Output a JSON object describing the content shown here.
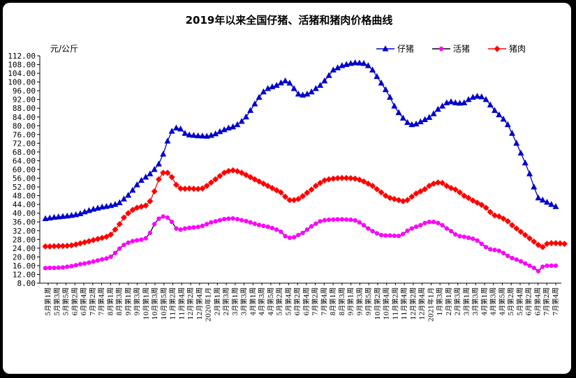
{
  "chart_data": {
    "type": "line",
    "title": "2019年以来全国仔猪、活猪和猪肉价格曲线",
    "ylabel": "元/公斤",
    "ylim": [
      8,
      112
    ],
    "yticks": [
      "112.00",
      "108.00",
      "104.00",
      "100.00",
      "96.00",
      "92.00",
      "88.00",
      "84.00",
      "80.00",
      "76.00",
      "72.00",
      "68.00",
      "64.00",
      "60.00",
      "56.00",
      "52.00",
      "48.00",
      "44.00",
      "40.00",
      "36.00",
      "32.00",
      "28.00",
      "24.00",
      "20.00",
      "16.00",
      "12.00",
      "8.00"
    ],
    "grid": false,
    "legend_position": "top-right",
    "x_labels": [
      "5月第1周",
      "5月第3周",
      "5月第5周",
      "6月第2周",
      "6月第4周",
      "7月第2周",
      "7月第4周",
      "8月第1周",
      "8月第3周",
      "9月第1周",
      "9月第3周",
      "10月第1周",
      "10月第3周",
      "10月第5周",
      "11月第2周",
      "11月第4周",
      "12月第2周",
      "12月第4周",
      "2020年1月",
      "2月第1周",
      "2月第3周",
      "3月第1周",
      "3月第3周",
      "4月第1周",
      "4月第3周",
      "4月第5周",
      "5月第2周",
      "5月第4周",
      "6月第2周",
      "6月第4周",
      "7月第2周",
      "7月第4周",
      "8月第1周",
      "8月第3周",
      "9月第1周",
      "9月第3周",
      "9月第5周",
      "10月第2周",
      "10月第4周",
      "11月第2周",
      "11月第4周",
      "12月第2周",
      "12月第4周",
      "2021年1月",
      "1月第3周",
      "2月第1周",
      "2月第3周",
      "3月第1周",
      "3月第3周",
      "4月第1周",
      "4月第3周",
      "4月第5周",
      "5月第2周",
      "5月第4周",
      "6月第2周",
      "6月第4周",
      "7月第2周",
      "7月第4周"
    ],
    "series": [
      {
        "name": "仔猪",
        "color": "#0000cc",
        "marker": "triangle",
        "values": [
          37.5,
          37.8,
          38.1,
          38.3,
          38.5,
          38.7,
          39.0,
          39.3,
          39.8,
          40.6,
          41.2,
          41.8,
          42.3,
          42.8,
          43.1,
          43.5,
          44.0,
          44.8,
          46.5,
          48.2,
          50.5,
          53.0,
          55.0,
          56.5,
          58.0,
          60.0,
          62.5,
          67.0,
          73.0,
          77.5,
          79.0,
          78.5,
          76.5,
          75.8,
          75.6,
          75.4,
          75.3,
          75.2,
          75.6,
          76.3,
          77.3,
          78.2,
          79.0,
          79.5,
          80.5,
          82.0,
          84.0,
          87.0,
          90.0,
          93.0,
          95.5,
          97.0,
          97.8,
          98.5,
          99.6,
          100.5,
          99.5,
          97.0,
          94.5,
          94.0,
          94.5,
          95.5,
          97.0,
          98.5,
          100.5,
          103.0,
          105.5,
          106.5,
          107.5,
          108.0,
          108.5,
          108.8,
          108.7,
          108.5,
          107.5,
          105.5,
          102.5,
          99.5,
          96.5,
          93.0,
          89.0,
          86.0,
          83.5,
          81.5,
          80.5,
          80.8,
          81.8,
          82.8,
          83.8,
          85.5,
          87.5,
          89.0,
          90.5,
          91.0,
          90.5,
          90.3,
          90.5,
          92.0,
          93.0,
          93.5,
          93.2,
          92.0,
          89.5,
          87.0,
          85.0,
          83.0,
          80.5,
          76.5,
          72.0,
          67.5,
          63.0,
          58.0,
          52.0,
          47.0,
          46.0,
          45.0,
          44.0,
          43.0
        ]
      },
      {
        "name": "活猪",
        "color": "#ff00ff",
        "marker": "circle",
        "values": [
          14.9,
          15.0,
          15.0,
          15.1,
          15.2,
          15.5,
          15.8,
          16.2,
          16.7,
          17.0,
          17.4,
          17.9,
          18.4,
          18.9,
          19.3,
          20.1,
          21.8,
          23.8,
          25.5,
          26.5,
          27.2,
          27.6,
          27.9,
          28.5,
          31.0,
          35.0,
          37.5,
          38.5,
          38.0,
          36.0,
          33.0,
          32.5,
          33.0,
          33.3,
          33.5,
          33.7,
          34.2,
          35.0,
          35.8,
          36.3,
          36.8,
          37.3,
          37.5,
          37.6,
          37.3,
          36.8,
          36.4,
          35.8,
          35.2,
          34.6,
          34.2,
          33.8,
          33.2,
          32.5,
          31.5,
          29.5,
          28.8,
          29.0,
          30.0,
          31.0,
          32.5,
          34.0,
          35.2,
          36.3,
          36.8,
          37.0,
          37.1,
          37.2,
          37.2,
          37.1,
          37.0,
          36.7,
          35.8,
          34.5,
          33.0,
          31.8,
          30.8,
          30.0,
          29.8,
          29.8,
          29.7,
          29.6,
          30.5,
          32.0,
          33.0,
          33.8,
          34.5,
          35.5,
          36.0,
          36.0,
          35.5,
          34.5,
          33.0,
          31.8,
          30.3,
          29.5,
          29.2,
          28.8,
          28.3,
          27.5,
          26.0,
          24.5,
          23.5,
          23.2,
          22.8,
          21.8,
          20.5,
          19.5,
          18.8,
          18.0,
          17.0,
          16.0,
          15.0,
          13.5,
          15.5,
          16.0,
          16.0,
          16.0
        ]
      },
      {
        "name": "猪肉",
        "color": "#ff0000",
        "marker": "diamond",
        "values": [
          24.8,
          24.8,
          24.9,
          25.0,
          25.0,
          25.1,
          25.3,
          25.7,
          26.2,
          26.7,
          27.2,
          27.7,
          28.2,
          28.7,
          29.2,
          30.2,
          32.5,
          35.0,
          38.0,
          40.0,
          41.5,
          42.5,
          43.0,
          43.5,
          45.5,
          50.0,
          55.5,
          58.5,
          58.5,
          56.5,
          53.0,
          51.3,
          51.2,
          51.3,
          51.2,
          51.1,
          51.3,
          52.5,
          54.0,
          55.5,
          57.0,
          58.5,
          59.3,
          59.6,
          59.2,
          58.5,
          57.5,
          56.5,
          55.5,
          54.5,
          53.5,
          52.5,
          51.5,
          50.5,
          49.5,
          47.5,
          46.0,
          46.0,
          46.5,
          47.8,
          49.3,
          50.8,
          52.5,
          53.8,
          55.0,
          55.5,
          55.8,
          56.0,
          56.1,
          56.1,
          56.0,
          55.8,
          55.3,
          54.5,
          53.5,
          52.5,
          51.0,
          49.5,
          48.0,
          47.0,
          46.5,
          46.0,
          45.5,
          46.0,
          47.5,
          49.0,
          50.0,
          51.0,
          52.5,
          53.5,
          54.0,
          53.8,
          52.5,
          51.5,
          50.8,
          49.5,
          48.0,
          47.0,
          45.8,
          44.8,
          43.8,
          42.5,
          40.5,
          39.0,
          38.5,
          37.5,
          36.3,
          34.5,
          33.0,
          31.5,
          30.0,
          28.5,
          27.0,
          25.5,
          24.5,
          26.0,
          26.3,
          26.3,
          26.2,
          26.0
        ]
      }
    ]
  }
}
